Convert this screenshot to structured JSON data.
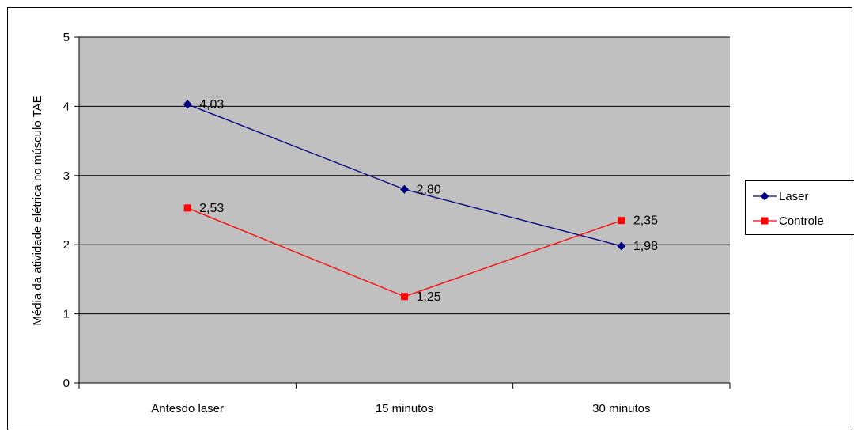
{
  "chart_data": {
    "type": "line",
    "title": "",
    "xlabel": "",
    "ylabel": "Média da atividade elétrica no músculo TAE",
    "categories": [
      "Antesdo laser",
      "15 minutos",
      "30 minutos"
    ],
    "ylim": [
      0,
      5
    ],
    "yticks": [
      "0",
      "1",
      "2",
      "3",
      "4",
      "5"
    ],
    "grid": true,
    "legend_position": "right",
    "series": [
      {
        "name": "Laser",
        "values": [
          4.03,
          2.8,
          1.98
        ],
        "labels": [
          "4,03",
          "2,80",
          "1,98"
        ],
        "color": "#000080",
        "marker": "diamond"
      },
      {
        "name": "Controle",
        "values": [
          2.53,
          1.25,
          2.35
        ],
        "labels": [
          "2,53",
          "1,25",
          "2,35"
        ],
        "color": "#ff0000",
        "marker": "square"
      }
    ]
  },
  "colors": {
    "plot_background": "#c0c0c0",
    "gridline": "#000000"
  }
}
